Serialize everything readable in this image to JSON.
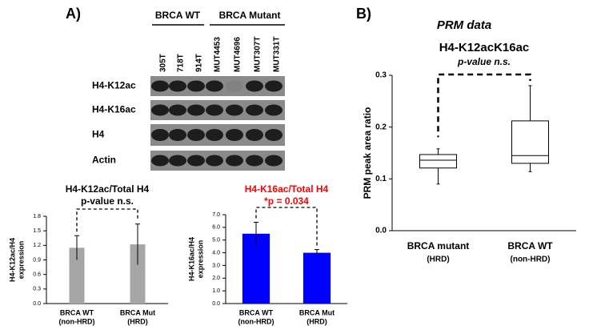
{
  "panels": {
    "a_label": "A)",
    "b_label": "B)",
    "b_heading": "PRM data"
  },
  "blot": {
    "groups": [
      "BRCA WT",
      "BRCA Mutant"
    ],
    "lanes": [
      "305T",
      "718T",
      "914T",
      "MUT4453",
      "MUT4696",
      "MUT307T",
      "MUT331T"
    ],
    "rows": [
      "H4-K12ac",
      "H4-K16ac",
      "H4",
      "Actin"
    ]
  },
  "chart_data": [
    {
      "type": "bar",
      "title": "H4-K12ac/Total H4",
      "subtitle": "p-value n.s.",
      "title_color": "#000000",
      "ylabel": [
        "H4-K12ac/H4",
        "expression"
      ],
      "categories": [
        [
          "BRCA WT",
          "(non-HRD)"
        ],
        [
          "BRCA Mut",
          "(HRD)"
        ]
      ],
      "values": [
        1.15,
        1.22
      ],
      "errors": [
        0.25,
        0.42
      ],
      "color": "#a6a6a6",
      "ylim": [
        0,
        1.8
      ],
      "yticks": [
        {
          "value": 0,
          "label": "0.0"
        },
        0.3,
        0.6,
        0.9,
        1.2,
        1.5,
        1.8
      ]
    },
    {
      "type": "bar",
      "title": "H4-K16ac/Total H4",
      "subtitle": "*p = 0.034",
      "title_color": "#ff0000",
      "ylabel": [
        "H4-K16ac/H4",
        "expression"
      ],
      "categories": [
        [
          "BRCA WT",
          "(non-HRD)"
        ],
        [
          "BRCA Mut",
          "(HRD)"
        ]
      ],
      "values": [
        5.5,
        4.0
      ],
      "errors": [
        0.9,
        0.25
      ],
      "color": "#0000ff",
      "ylim": [
        0,
        7
      ],
      "yticks": [
        {
          "value": 0,
          "label": "0.0"
        },
        {
          "value": 1,
          "label": "1.0"
        },
        {
          "value": 2,
          "label": "2.0"
        },
        {
          "value": 3,
          "label": "3.0"
        },
        {
          "value": 4,
          "label": "4.0"
        },
        {
          "value": 5,
          "label": "5.0"
        },
        {
          "value": 6,
          "label": "6.0"
        },
        {
          "value": 7,
          "label": "7.0"
        }
      ]
    },
    {
      "type": "box",
      "title": "H4-K12acK16ac",
      "subtitle": "p-value n.s.",
      "title_color": "#000000",
      "ylabel": [
        "PRM peak area ratio"
      ],
      "categories": [
        [
          "BRCA mutant",
          "(HRD)"
        ],
        [
          "BRCA WT",
          "(non-HRD)"
        ]
      ],
      "boxes": [
        {
          "whislo": 0.09,
          "q1": 0.121,
          "med": 0.136,
          "q3": 0.147,
          "whishi": 0.158,
          "fliers": [
            0.182
          ]
        },
        {
          "whislo": 0.114,
          "q1": 0.13,
          "med": 0.145,
          "q3": 0.212,
          "whishi": 0.28,
          "fliers": []
        }
      ],
      "color": "#ffffff",
      "ylim": [
        0,
        0.3
      ],
      "yticks": [
        {
          "value": 0,
          "label": "0.0"
        },
        0.1,
        0.2,
        0.3
      ]
    }
  ]
}
